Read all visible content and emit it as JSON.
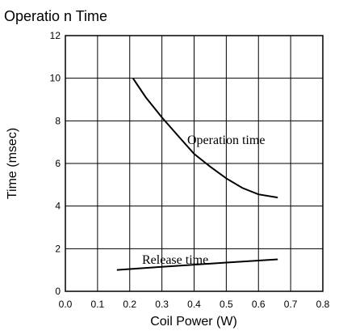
{
  "chart_data": {
    "type": "line",
    "title": "Operatio n Time",
    "xlabel": "Coil Power (W)",
    "ylabel": "Time (msec)",
    "xlim": [
      0,
      0.8
    ],
    "ylim": [
      0,
      12
    ],
    "xticks": [
      {
        "value": 0,
        "label": "0.0"
      },
      0.1,
      0.2,
      0.3,
      0.4,
      0.5,
      0.6,
      0.7,
      0.8
    ],
    "yticks": [
      0,
      2,
      4,
      6,
      8,
      10,
      12
    ],
    "grid": true,
    "series": [
      {
        "name": "Operation time",
        "color": "#000000",
        "x": [
          0.21,
          0.25,
          0.3,
          0.35,
          0.4,
          0.45,
          0.5,
          0.55,
          0.6,
          0.66
        ],
        "values": [
          10,
          9.1,
          8.16,
          7.3,
          6.45,
          5.85,
          5.3,
          4.85,
          4.55,
          4.4
        ]
      },
      {
        "name": "Release time",
        "color": "#000000",
        "x": [
          0.16,
          0.3,
          0.4,
          0.5,
          0.66
        ],
        "values": [
          1.0,
          1.15,
          1.25,
          1.35,
          1.5
        ]
      }
    ]
  }
}
